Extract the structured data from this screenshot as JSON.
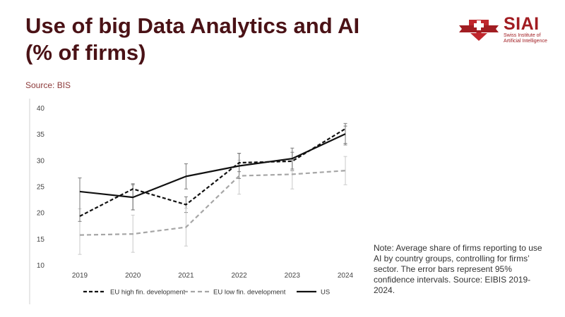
{
  "header": {
    "title_line1": "Use of big Data Analytics and AI",
    "title_line2": "(% of firms)",
    "source": "Source: BIS"
  },
  "logo": {
    "name": "SIAI",
    "subtitle_line1": "Swiss Institute of",
    "subtitle_line2": "Artificial Intelligence",
    "icon": "swiss-cross-shield-icon",
    "color": "#a11d22"
  },
  "note": "Note: Average share of firms reporting to use AI by country groups, controlling for firms’ sector. The error bars represent 95% confidence intervals. Source: EIBIS 2019-2024.",
  "chart_data": {
    "type": "line",
    "title": "Use of big Data Analytics and AI (% of firms)",
    "x": [
      "2019",
      "2020",
      "2021",
      "2022",
      "2023",
      "2024"
    ],
    "yticks": [
      10,
      15,
      20,
      25,
      30,
      35,
      40
    ],
    "ylim": [
      10,
      40
    ],
    "xlabel": "",
    "ylabel": "",
    "legend_position": "bottom",
    "series": [
      {
        "name": "EU high fin. development",
        "style": "dashed",
        "color": "#111111",
        "values": [
          19.3,
          24.5,
          21.5,
          29.5,
          29.8,
          36
        ],
        "ci_low": [
          null,
          20.5,
          20.0,
          27.8,
          28.0,
          33.2
        ],
        "ci_high": [
          null,
          25.5,
          23.0,
          31.3,
          31.5,
          37.0
        ]
      },
      {
        "name": "EU low fin. development",
        "style": "dashed",
        "color": "#a6a6a6",
        "values": [
          15.7,
          15.9,
          17.2,
          27.0,
          27.3,
          28.0
        ],
        "ci_low": [
          12.0,
          12.4,
          13.6,
          23.5,
          24.5,
          25.3
        ],
        "ci_high": [
          20.7,
          19.5,
          20.8,
          30.0,
          30.3,
          30.7
        ]
      },
      {
        "name": "US",
        "style": "solid",
        "color": "#111111",
        "values": [
          24.0,
          22.9,
          26.9,
          28.9,
          30.3,
          35.0
        ],
        "ci_low": [
          18.3,
          20.5,
          24.5,
          26.5,
          28.3,
          32.9
        ],
        "ci_high": [
          26.6,
          25.3,
          29.3,
          31.3,
          32.3,
          36.5
        ]
      }
    ]
  }
}
